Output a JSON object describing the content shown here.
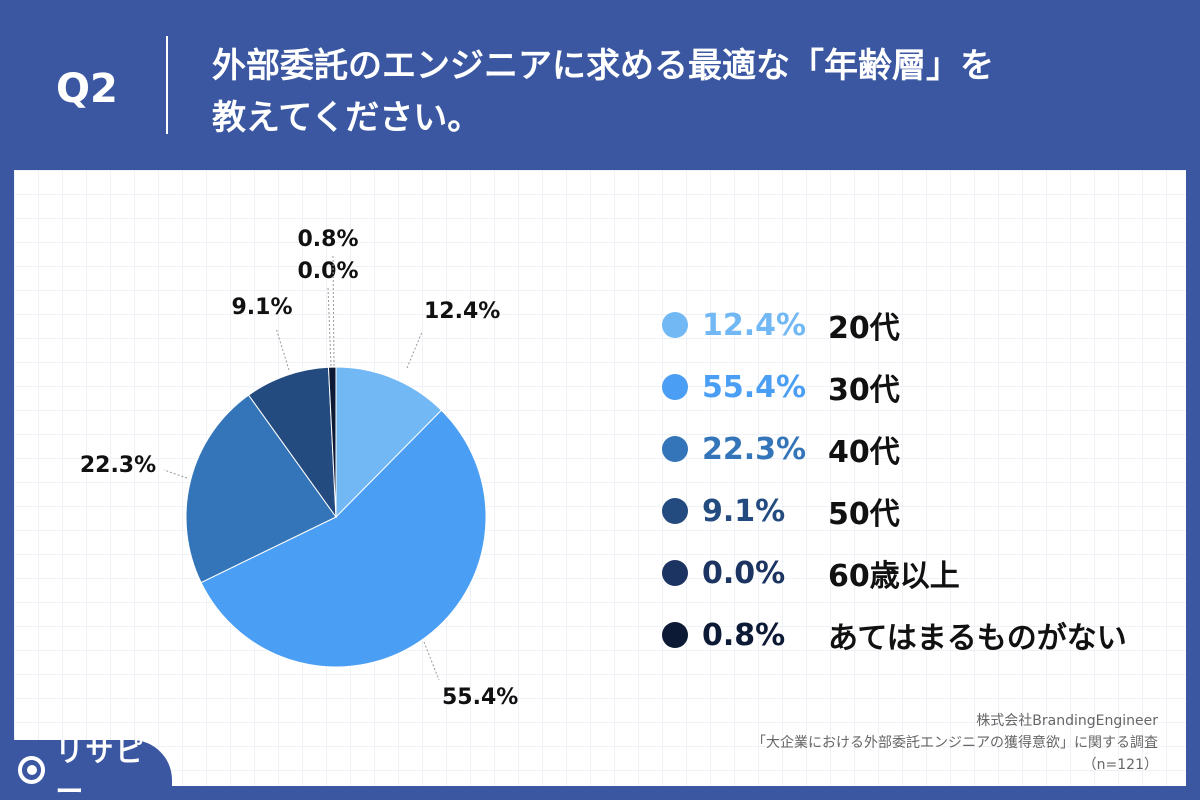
{
  "header": {
    "question_id": "Q2",
    "title_line1": "外部委託のエンジニアに求める最適な「年齢層」を",
    "title_line2": "教えてください。"
  },
  "chart_data": {
    "type": "pie",
    "title": "外部委託のエンジニアに求める最適な「年齢層」を教えてください。",
    "categories": [
      "20代",
      "30代",
      "40代",
      "50代",
      "60歳以上",
      "あてはまるものがない"
    ],
    "values": [
      12.4,
      55.4,
      22.3,
      9.1,
      0.0,
      0.8
    ],
    "value_labels": [
      "12.4%",
      "55.4%",
      "22.3%",
      "9.1%",
      "0.0%",
      "0.8%"
    ],
    "colors": [
      "#72b8f5",
      "#4a9ef3",
      "#3475b9",
      "#234b7f",
      "#1b3461",
      "#0d1a36"
    ],
    "legend_position": "right"
  },
  "source": {
    "company": "株式会社BrandingEngineer",
    "survey": "「大企業における外部委託エンジニアの獲得意欲」に関する調査",
    "sample": "（n=121）"
  },
  "brand": {
    "logo_icon": "location-pin-icon",
    "name": "リサピー"
  }
}
